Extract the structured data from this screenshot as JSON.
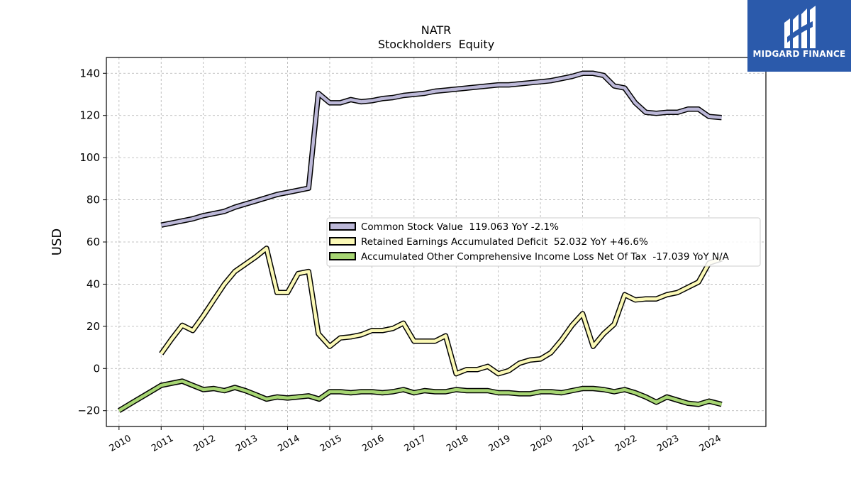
{
  "chart_data": {
    "type": "line",
    "title": "NATR",
    "subtitle": "Stockholders  Equity",
    "ylabel": "USD",
    "xlabel": "",
    "xlim": [
      2009.7,
      2025.35
    ],
    "ylim": [
      -27.5,
      147.5
    ],
    "yticks": [
      -20,
      0,
      20,
      40,
      60,
      80,
      100,
      120,
      140
    ],
    "ytick_labels": [
      "−20",
      "0",
      "20",
      "40",
      "60",
      "80",
      "100",
      "120",
      "140"
    ],
    "xticks": [
      2010,
      2011,
      2012,
      2013,
      2014,
      2015,
      2016,
      2017,
      2018,
      2019,
      2020,
      2021,
      2022,
      2023,
      2024
    ],
    "xtick_labels": [
      "2010",
      "2011",
      "2012",
      "2013",
      "2014",
      "2015",
      "2016",
      "2017",
      "2018",
      "2019",
      "2020",
      "2021",
      "2022",
      "2023",
      "2024"
    ],
    "grid": true,
    "legend_position": "center-right",
    "series": [
      {
        "name": "Common Stock Value  119.063 YoY -2.1%",
        "color": "#bcb8d8",
        "points": [
          [
            2011.0,
            68.0
          ],
          [
            2011.25,
            69.0
          ],
          [
            2011.5,
            70.0
          ],
          [
            2011.75,
            71.0
          ],
          [
            2012.0,
            72.5
          ],
          [
            2012.25,
            73.5
          ],
          [
            2012.5,
            74.5
          ],
          [
            2012.75,
            76.5
          ],
          [
            2013.0,
            78.0
          ],
          [
            2013.25,
            79.5
          ],
          [
            2013.5,
            81.0
          ],
          [
            2013.75,
            82.5
          ],
          [
            2014.0,
            83.5
          ],
          [
            2014.25,
            84.5
          ],
          [
            2014.5,
            85.5
          ],
          [
            2014.73,
            130.5
          ],
          [
            2015.0,
            126.0
          ],
          [
            2015.25,
            126.0
          ],
          [
            2015.5,
            127.5
          ],
          [
            2015.75,
            126.5
          ],
          [
            2016.0,
            127.0
          ],
          [
            2016.25,
            128.0
          ],
          [
            2016.5,
            128.5
          ],
          [
            2016.75,
            129.5
          ],
          [
            2017.0,
            130.0
          ],
          [
            2017.25,
            130.5
          ],
          [
            2017.5,
            131.5
          ],
          [
            2017.75,
            132.0
          ],
          [
            2018.0,
            132.5
          ],
          [
            2018.25,
            133.0
          ],
          [
            2018.5,
            133.5
          ],
          [
            2018.75,
            134.0
          ],
          [
            2019.0,
            134.5
          ],
          [
            2019.25,
            134.5
          ],
          [
            2019.5,
            135.0
          ],
          [
            2019.75,
            135.5
          ],
          [
            2020.0,
            136.0
          ],
          [
            2020.25,
            136.5
          ],
          [
            2020.5,
            137.5
          ],
          [
            2020.75,
            138.5
          ],
          [
            2021.0,
            140.0
          ],
          [
            2021.25,
            140.0
          ],
          [
            2021.5,
            139.0
          ],
          [
            2021.75,
            134.0
          ],
          [
            2022.0,
            133.0
          ],
          [
            2022.25,
            126.0
          ],
          [
            2022.5,
            121.5
          ],
          [
            2022.75,
            121.0
          ],
          [
            2023.0,
            121.5
          ],
          [
            2023.25,
            121.5
          ],
          [
            2023.5,
            123.0
          ],
          [
            2023.75,
            123.0
          ],
          [
            2024.0,
            119.5
          ],
          [
            2024.3,
            119.0
          ]
        ]
      },
      {
        "name": "Retained Earnings Accumulated Deficit  52.032 YoY +46.6%",
        "color": "#fbf9b6",
        "points": [
          [
            2011.0,
            7.0
          ],
          [
            2011.25,
            14.0
          ],
          [
            2011.5,
            20.5
          ],
          [
            2011.75,
            18.0
          ],
          [
            2012.0,
            25.0
          ],
          [
            2012.25,
            32.5
          ],
          [
            2012.5,
            40.0
          ],
          [
            2012.75,
            46.0
          ],
          [
            2013.0,
            49.5
          ],
          [
            2013.25,
            53.0
          ],
          [
            2013.5,
            57.0
          ],
          [
            2013.75,
            36.0
          ],
          [
            2014.0,
            36.0
          ],
          [
            2014.25,
            45.0
          ],
          [
            2014.5,
            46.0
          ],
          [
            2014.73,
            16.5
          ],
          [
            2015.0,
            10.5
          ],
          [
            2015.25,
            14.5
          ],
          [
            2015.5,
            15.0
          ],
          [
            2015.75,
            16.0
          ],
          [
            2016.0,
            18.0
          ],
          [
            2016.25,
            18.0
          ],
          [
            2016.5,
            19.0
          ],
          [
            2016.75,
            21.5
          ],
          [
            2017.0,
            13.0
          ],
          [
            2017.25,
            13.0
          ],
          [
            2017.5,
            13.0
          ],
          [
            2017.75,
            15.5
          ],
          [
            2018.0,
            -2.5
          ],
          [
            2018.25,
            -0.5
          ],
          [
            2018.5,
            -0.5
          ],
          [
            2018.75,
            1.0
          ],
          [
            2019.0,
            -2.5
          ],
          [
            2019.25,
            -1.0
          ],
          [
            2019.5,
            2.5
          ],
          [
            2019.75,
            4.0
          ],
          [
            2020.0,
            4.5
          ],
          [
            2020.25,
            7.5
          ],
          [
            2020.5,
            13.5
          ],
          [
            2020.75,
            20.5
          ],
          [
            2021.0,
            26.0
          ],
          [
            2021.25,
            10.5
          ],
          [
            2021.5,
            16.5
          ],
          [
            2021.75,
            21.0
          ],
          [
            2022.0,
            35.0
          ],
          [
            2022.25,
            32.5
          ],
          [
            2022.5,
            33.0
          ],
          [
            2022.75,
            33.0
          ],
          [
            2023.0,
            35.0
          ],
          [
            2023.25,
            36.0
          ],
          [
            2023.5,
            38.5
          ],
          [
            2023.75,
            41.0
          ],
          [
            2024.0,
            50.0
          ],
          [
            2024.3,
            52.0
          ]
        ]
      },
      {
        "name": "Accumulated Other Comprehensive Income Loss Net Of Tax  -17.039 YoY N/A",
        "color": "#a7d673",
        "points": [
          [
            2010.0,
            -20.0
          ],
          [
            2010.33,
            -16.0
          ],
          [
            2010.67,
            -12.0
          ],
          [
            2011.0,
            -8.0
          ],
          [
            2011.25,
            -7.0
          ],
          [
            2011.5,
            -6.0
          ],
          [
            2011.75,
            -8.0
          ],
          [
            2012.0,
            -10.0
          ],
          [
            2012.25,
            -9.5
          ],
          [
            2012.5,
            -10.5
          ],
          [
            2012.75,
            -9.0
          ],
          [
            2013.0,
            -10.5
          ],
          [
            2013.25,
            -12.5
          ],
          [
            2013.5,
            -14.5
          ],
          [
            2013.75,
            -13.5
          ],
          [
            2014.0,
            -14.0
          ],
          [
            2014.25,
            -13.5
          ],
          [
            2014.5,
            -13.0
          ],
          [
            2014.75,
            -14.5
          ],
          [
            2015.0,
            -11.0
          ],
          [
            2015.25,
            -11.0
          ],
          [
            2015.5,
            -11.5
          ],
          [
            2015.75,
            -11.0
          ],
          [
            2016.0,
            -11.0
          ],
          [
            2016.25,
            -11.5
          ],
          [
            2016.5,
            -11.0
          ],
          [
            2016.75,
            -10.0
          ],
          [
            2017.0,
            -11.5
          ],
          [
            2017.25,
            -10.5
          ],
          [
            2017.5,
            -11.0
          ],
          [
            2017.75,
            -11.0
          ],
          [
            2018.0,
            -10.0
          ],
          [
            2018.25,
            -10.5
          ],
          [
            2018.5,
            -10.5
          ],
          [
            2018.75,
            -10.5
          ],
          [
            2019.0,
            -11.5
          ],
          [
            2019.25,
            -11.5
          ],
          [
            2019.5,
            -12.0
          ],
          [
            2019.75,
            -12.0
          ],
          [
            2020.0,
            -11.0
          ],
          [
            2020.25,
            -11.0
          ],
          [
            2020.5,
            -11.5
          ],
          [
            2020.75,
            -10.5
          ],
          [
            2021.0,
            -9.5
          ],
          [
            2021.25,
            -9.5
          ],
          [
            2021.5,
            -10.0
          ],
          [
            2021.75,
            -11.0
          ],
          [
            2022.0,
            -10.0
          ],
          [
            2022.25,
            -11.5
          ],
          [
            2022.5,
            -13.5
          ],
          [
            2022.75,
            -16.0
          ],
          [
            2023.0,
            -13.5
          ],
          [
            2023.25,
            -15.0
          ],
          [
            2023.5,
            -16.5
          ],
          [
            2023.75,
            -17.0
          ],
          [
            2024.0,
            -15.5
          ],
          [
            2024.3,
            -17.0
          ]
        ]
      }
    ]
  },
  "logo": {
    "text": "MIDGARD FINANCE",
    "background": "#2b5aab"
  }
}
